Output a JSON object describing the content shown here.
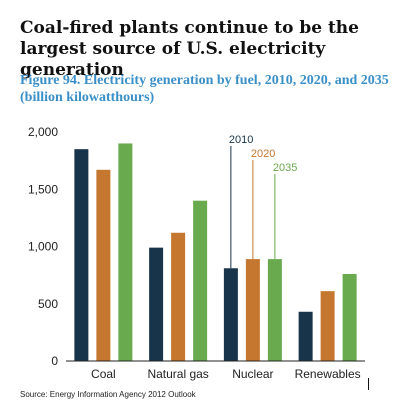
{
  "headline": "Coal-fired plants continue to be the largest source of U.S. electricity generation",
  "source": "Source: Energy Information  Agency    2012 Outlook",
  "colors": {
    "subtitle": "#3a8fc8",
    "axis": "#222222"
  },
  "chart_data": {
    "type": "bar",
    "title": "Figure 94. Electricity generation by fuel, 2010, 2020, and 2035 (billion kilowatthours)",
    "categories": [
      "Coal",
      "Natural gas",
      "Nuclear",
      "Renewables"
    ],
    "series": [
      {
        "name": "2010",
        "color": "#17344a",
        "values": [
          1850,
          990,
          810,
          430
        ]
      },
      {
        "name": "2020",
        "color": "#c6772f",
        "values": [
          1670,
          1120,
          890,
          610
        ]
      },
      {
        "name": "2035",
        "color": "#6aaa4e",
        "values": [
          1900,
          1400,
          890,
          760
        ]
      }
    ],
    "ylim": [
      0,
      2000
    ],
    "yticks": [
      0,
      500,
      1000,
      1500,
      2000
    ],
    "ytick_labels": [
      "0",
      "500",
      "1,000",
      "1,500",
      "2,000"
    ],
    "legend_placement": "inline-above-nuclear",
    "grid": false
  }
}
